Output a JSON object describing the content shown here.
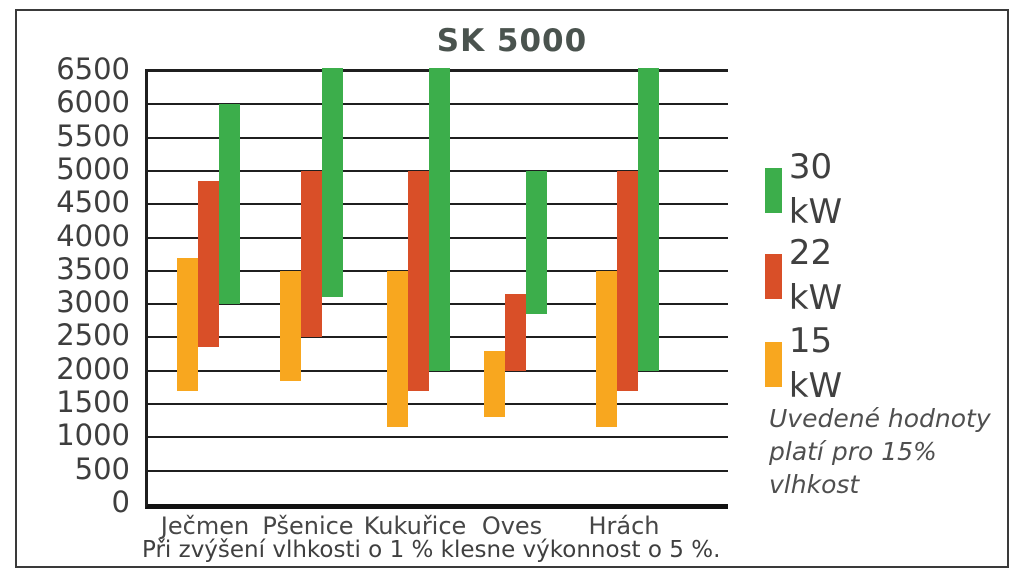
{
  "title": "SK 5000",
  "legend": {
    "items": [
      {
        "label": "30 kW",
        "color": "#3cae4b"
      },
      {
        "label": "22 kW",
        "color": "#d94f28"
      },
      {
        "label": "15 kW",
        "color": "#f8a71f"
      }
    ]
  },
  "note": "Uvedené hodnoty platí pro 15% vlhkost",
  "caption": "Při zvýšení vlhkosti o 1 % klesne výkonnost o 5 %.",
  "chart_data": {
    "type": "bar",
    "subtype": "floating-range-bars",
    "title": "SK 5000",
    "categories": [
      "Ječmen",
      "Pšenice",
      "Kukuřice",
      "Oves",
      "Hrách"
    ],
    "series": [
      {
        "name": "15 kW",
        "color": "#f8a71f",
        "ranges": [
          [
            1700,
            3700
          ],
          [
            1850,
            3500
          ],
          [
            1150,
            3500
          ],
          [
            1300,
            2300
          ],
          [
            1150,
            3500
          ]
        ]
      },
      {
        "name": "22 kW",
        "color": "#d94f28",
        "ranges": [
          [
            2350,
            4850
          ],
          [
            2500,
            5000
          ],
          [
            1700,
            5000
          ],
          [
            2000,
            3150
          ],
          [
            1700,
            5000
          ]
        ]
      },
      {
        "name": "30 kW",
        "color": "#3cae4b",
        "ranges": [
          [
            3000,
            6000
          ],
          [
            3100,
            6500
          ],
          [
            2000,
            6500
          ],
          [
            2850,
            5000
          ],
          [
            2000,
            6500
          ]
        ]
      }
    ],
    "xlabel": "",
    "ylabel": "",
    "ylim": [
      0,
      6500
    ],
    "ytick_step": 500,
    "grid": true,
    "legend_position": "right",
    "footnote": "Při zvýšení vlhkosti o 1 % klesne výkonnost o 5 %."
  }
}
